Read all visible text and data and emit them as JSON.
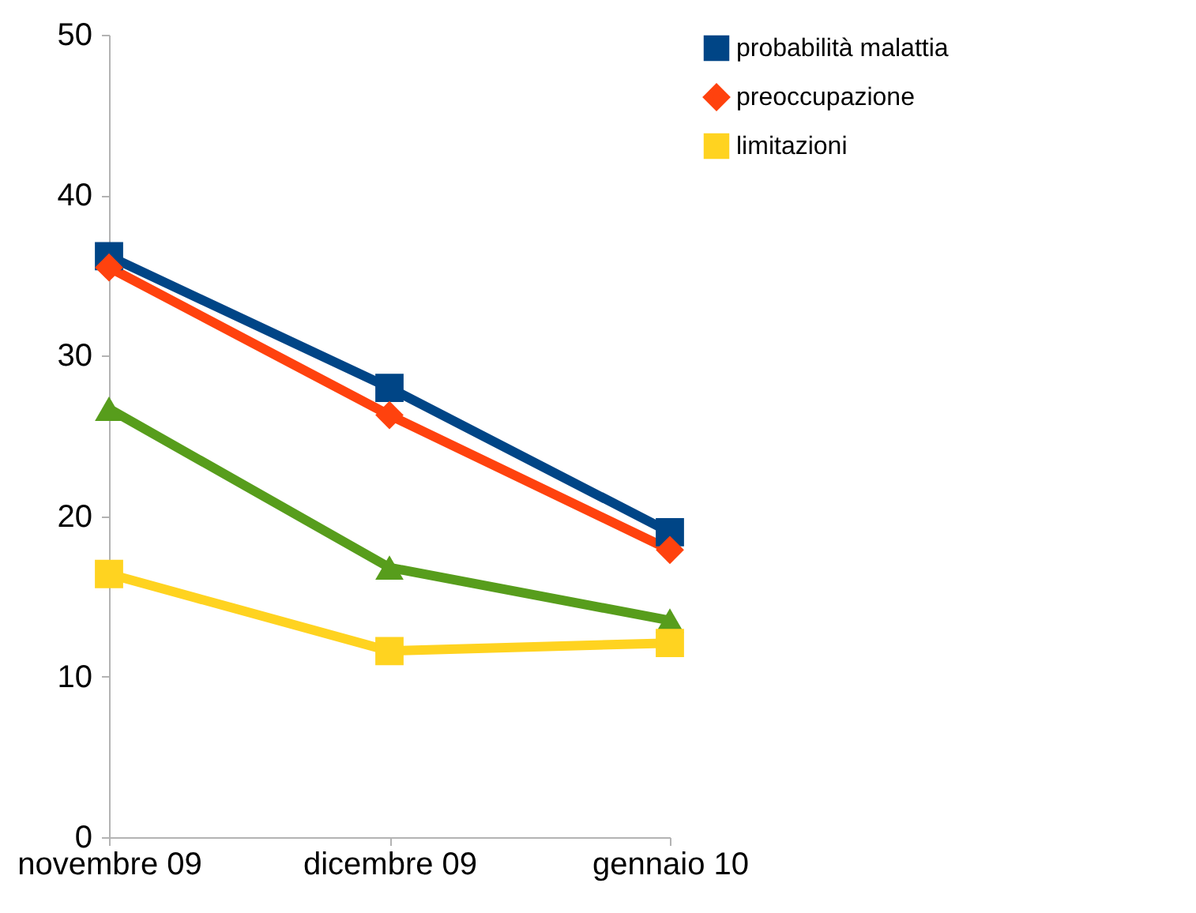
{
  "chart_data": {
    "type": "line",
    "categories": [
      "novembre 09",
      "dicembre 09",
      "gennaio 10"
    ],
    "series": [
      {
        "name": "probabilità malattia",
        "color": "#004586",
        "marker": "square",
        "values": [
          36.2,
          28.0,
          19.0
        ]
      },
      {
        "name": "preoccupazione",
        "color": "#ff420e",
        "marker": "diamond",
        "values": [
          35.5,
          26.3,
          17.9
        ]
      },
      {
        "color": "#579d1c",
        "marker": "triangle",
        "values": [
          26.7,
          16.8,
          13.5
        ]
      },
      {
        "name": "limitazioni",
        "color": "#ffd320",
        "marker": "square",
        "values": [
          16.4,
          11.6,
          12.1
        ]
      }
    ],
    "ylim": [
      0,
      50
    ],
    "yticks": [
      0,
      10,
      20,
      30,
      40,
      50
    ],
    "grid": false,
    "legend": "right",
    "line_style": "solid"
  }
}
